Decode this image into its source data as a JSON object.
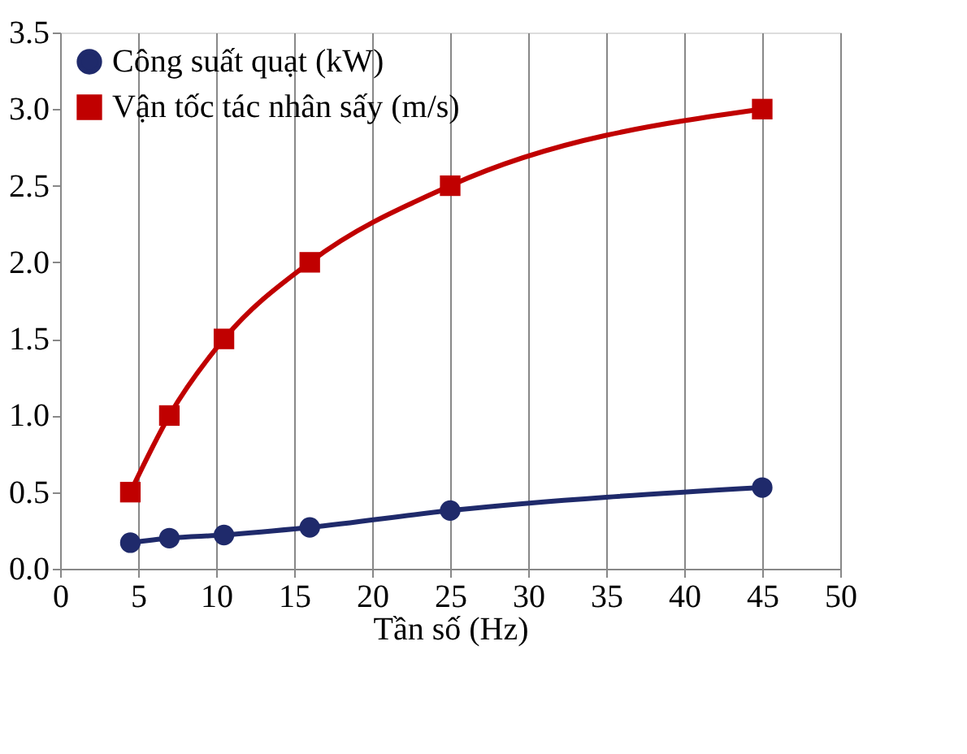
{
  "chart_data": {
    "type": "line",
    "xlabel": "Tần số (Hz)",
    "x": [
      4.5,
      7,
      10.5,
      16,
      25,
      45
    ],
    "series": [
      {
        "name": "Công suất quạt (kW)",
        "color": "#1f2a6b",
        "marker": "circle",
        "values": [
          0.17,
          0.2,
          0.22,
          0.27,
          0.38,
          0.53
        ]
      },
      {
        "name": "Vận tốc tác nhân sấy (m/s)",
        "color": "#c00000",
        "marker": "square",
        "values": [
          0.5,
          1.0,
          1.5,
          2.0,
          2.5,
          3.0
        ]
      }
    ],
    "xlim": [
      0,
      50
    ],
    "xticks": [
      0,
      5,
      10,
      15,
      20,
      25,
      30,
      35,
      40,
      45,
      50
    ],
    "ylim": [
      0,
      3.5
    ],
    "yticks": [
      {
        "value": 0,
        "label": "0.0"
      },
      0.5,
      {
        "value": 1,
        "label": "1.0"
      },
      1.5,
      {
        "value": 2,
        "label": "2.0"
      },
      2.5,
      {
        "value": 3,
        "label": "3.0"
      },
      3.5
    ],
    "grid": "x",
    "legend": "top left",
    "line_style": "solid"
  }
}
